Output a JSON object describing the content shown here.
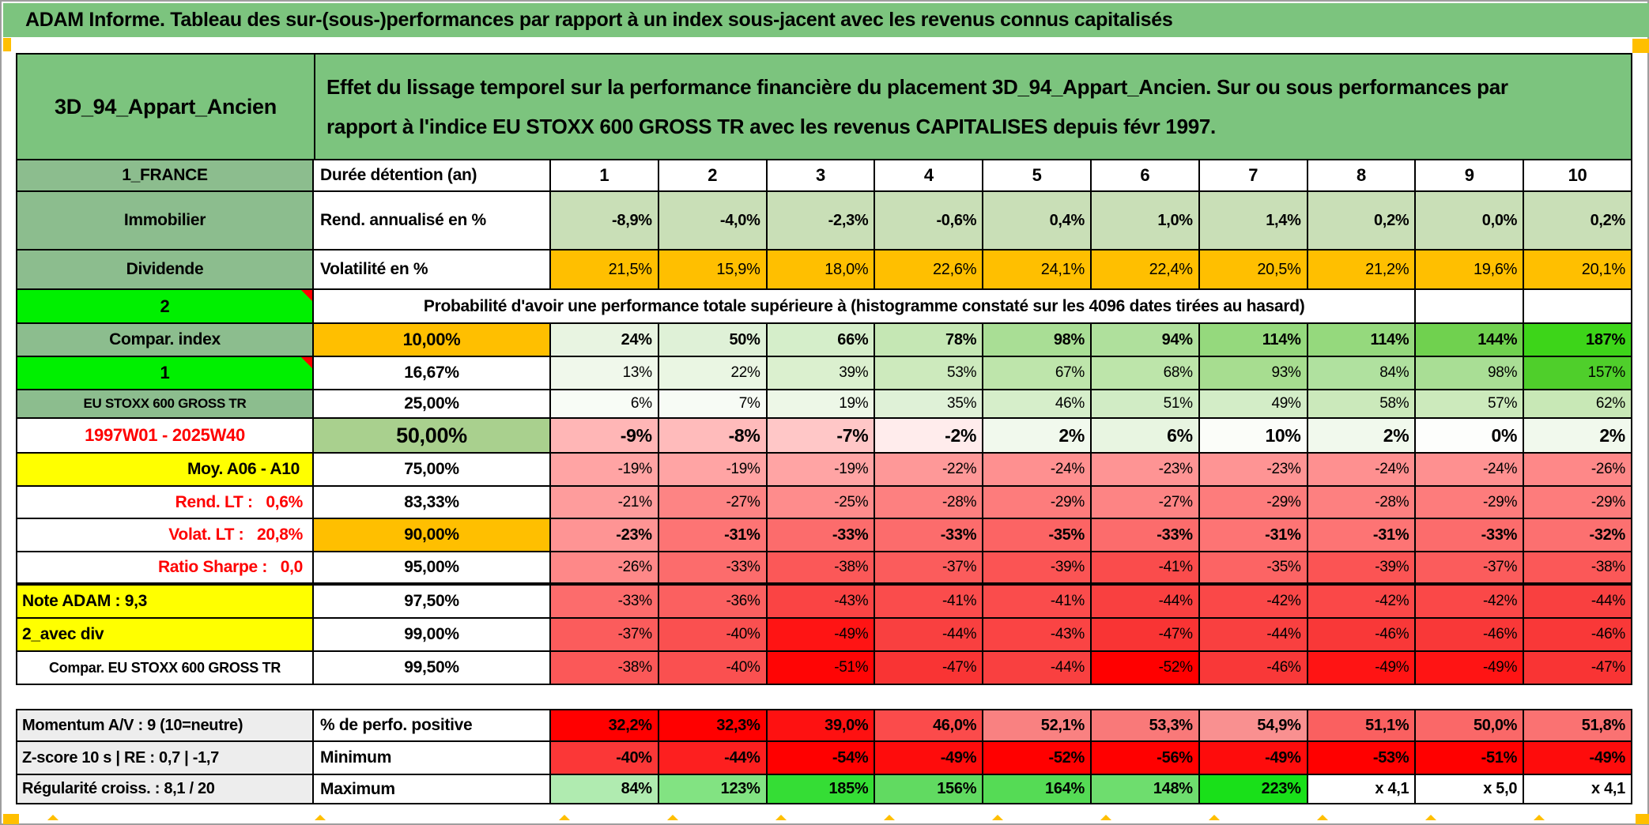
{
  "window": {
    "title": "ADAM Informe. Tableau des sur-(sous-)performances par rapport à un index sous-jacent avec les revenus connus capitalisés"
  },
  "header": {
    "asset_name": "3D_94_Appart_Ancien",
    "description": "Effet du lissage temporel sur la performance financière du placement 3D_94_Appart_Ancien. Sur ou sous performances par rapport à l'indice EU STOXX 600 GROSS TR avec les revenus CAPITALISES depuis févr 1997."
  },
  "colors": {
    "accent_green": "#7cc47e",
    "label_green": "#8cbd8e",
    "bright_green": "#00f000",
    "orange": "#ffbf00",
    "yellow": "#ffff00",
    "red_text": "#fe0000",
    "gray_label": "#ededed",
    "mid_green_50": "#a9d08e"
  },
  "table": {
    "rows": [
      {
        "id": "duration",
        "left": {
          "t": "1_FRANCE",
          "bg": "#8cbd8e"
        },
        "mid": {
          "t": "Durée détention (an)"
        },
        "cells": [
          [
            "1",
            "#ffffff"
          ],
          [
            "2",
            "#ffffff"
          ],
          [
            "3",
            "#ffffff"
          ],
          [
            "4",
            "#ffffff"
          ],
          [
            "5",
            "#ffffff"
          ],
          [
            "6",
            "#ffffff"
          ],
          [
            "7",
            "#ffffff"
          ],
          [
            "8",
            "#ffffff"
          ],
          [
            "9",
            "#ffffff"
          ],
          [
            "10",
            "#ffffff"
          ]
        ]
      },
      {
        "id": "rend",
        "left": {
          "t": "Immobilier",
          "bg": "#8cbd8e"
        },
        "mid": {
          "t": "Rend. annualisé en %"
        },
        "cells": [
          [
            "-8,9%",
            "#c9dfb7"
          ],
          [
            "-4,0%",
            "#c9dfb7"
          ],
          [
            "-2,3%",
            "#c9dfb7"
          ],
          [
            "-0,6%",
            "#c9dfb7"
          ],
          [
            "0,4%",
            "#c9dfb7"
          ],
          [
            "1,0%",
            "#c9dfb7"
          ],
          [
            "1,4%",
            "#c9dfb7"
          ],
          [
            "0,2%",
            "#c9dfb7"
          ],
          [
            "0,0%",
            "#c9dfb7"
          ],
          [
            "0,2%",
            "#c9dfb7"
          ]
        ]
      },
      {
        "id": "volat",
        "left": {
          "t": "Dividende",
          "bg": "#8cbd8e"
        },
        "mid": {
          "t": "Volatilité en %"
        },
        "cells": [
          [
            "21,5%",
            "#ffbf00"
          ],
          [
            "15,9%",
            "#ffbf00"
          ],
          [
            "18,0%",
            "#ffbf00"
          ],
          [
            "22,6%",
            "#ffbf00"
          ],
          [
            "24,1%",
            "#ffbf00"
          ],
          [
            "22,4%",
            "#ffbf00"
          ],
          [
            "20,5%",
            "#ffbf00"
          ],
          [
            "21,2%",
            "#ffbf00"
          ],
          [
            "19,6%",
            "#ffbf00"
          ],
          [
            "20,1%",
            "#ffbf00"
          ]
        ]
      },
      {
        "id": "probability",
        "left": {
          "t": "2",
          "bg": "#00f000",
          "note": true
        },
        "merged": "Probabilité d'avoir une performance totale supérieure à (histogramme constaté sur les 4096 dates tirées au hasard)",
        "tails": [
          "",
          ""
        ]
      },
      {
        "id": "p10",
        "left": {
          "t": "Compar. index",
          "bg": "#8cbd8e"
        },
        "mid": {
          "t": "10,00%",
          "bg": "#ffbf00"
        },
        "cells": [
          [
            "24%",
            "#e8f4e1"
          ],
          [
            "50%",
            "#dff1d7"
          ],
          [
            "66%",
            "#d5eeca"
          ],
          [
            "78%",
            "#c5e7b4"
          ],
          [
            "98%",
            "#a9de95"
          ],
          [
            "94%",
            "#afe09c"
          ],
          [
            "114%",
            "#95d97d"
          ],
          [
            "114%",
            "#95d97d"
          ],
          [
            "144%",
            "#70d14f"
          ],
          [
            "187%",
            "#3dd519"
          ]
        ]
      },
      {
        "id": "p16",
        "left": {
          "t": "1",
          "bg": "#00f000",
          "note": true
        },
        "mid": {
          "t": "16,67%"
        },
        "cells": [
          [
            "13%",
            "#f0f8eb"
          ],
          [
            "22%",
            "#eaf6e3"
          ],
          [
            "39%",
            "#dbf0cf"
          ],
          [
            "53%",
            "#cdeabd"
          ],
          [
            "67%",
            "#bee5ab"
          ],
          [
            "68%",
            "#bde5aa"
          ],
          [
            "93%",
            "#a7dd90"
          ],
          [
            "84%",
            "#b0e19f"
          ],
          [
            "98%",
            "#a9de95"
          ],
          [
            "157%",
            "#4fcf2b"
          ]
        ]
      },
      {
        "id": "p25",
        "left": {
          "t": "EU STOXX 600 GROSS TR",
          "bg": "#8cbd8e"
        },
        "mid": {
          "t": "25,00%"
        },
        "cells": [
          [
            "6%",
            "#f8fcf6"
          ],
          [
            "7%",
            "#f7fbf5"
          ],
          [
            "19%",
            "#edf7e7"
          ],
          [
            "35%",
            "#dff1d7"
          ],
          [
            "46%",
            "#d6eeca"
          ],
          [
            "51%",
            "#d1ecc5"
          ],
          [
            "49%",
            "#d3edc7"
          ],
          [
            "58%",
            "#cbe9bb"
          ],
          [
            "57%",
            "#cceabc"
          ],
          [
            "62%",
            "#c8e8b6"
          ]
        ]
      },
      {
        "id": "p50",
        "left": {
          "t": "1997W01 - 2025W40",
          "bg": "#ffffff",
          "color": "#fe0000"
        },
        "mid": {
          "t": "50,00%",
          "bg": "#a9d08e"
        },
        "cells": [
          [
            "-9%",
            "#ffb6b6"
          ],
          [
            "-8%",
            "#ffbbbb"
          ],
          [
            "-7%",
            "#ffc7c7"
          ],
          [
            "-2%",
            "#ffecec"
          ],
          [
            "2%",
            "#f1f9ed"
          ],
          [
            "6%",
            "#e8f5e1"
          ],
          [
            "10%",
            "#fbfdf9"
          ],
          [
            "2%",
            "#f1f9ed"
          ],
          [
            "0%",
            "#fdfefc"
          ],
          [
            "2%",
            "#f1f9ed"
          ]
        ]
      },
      {
        "id": "p75",
        "left": {
          "t": "Moy. A06 - A10",
          "bg": "#ffff00"
        },
        "mid": {
          "t": "75,00%"
        },
        "cells": [
          [
            "-19%",
            "#ffa4a4"
          ],
          [
            "-19%",
            "#ffa4a4"
          ],
          [
            "-19%",
            "#ffa4a4"
          ],
          [
            "-22%",
            "#fe9898"
          ],
          [
            "-24%",
            "#fe9090"
          ],
          [
            "-23%",
            "#fe9494"
          ],
          [
            "-23%",
            "#fe9494"
          ],
          [
            "-24%",
            "#fe9090"
          ],
          [
            "-24%",
            "#fe9090"
          ],
          [
            "-26%",
            "#fe8888"
          ]
        ]
      },
      {
        "id": "p83",
        "left": {
          "t": "Rend. LT :   0,6%",
          "bg": "#ffffff",
          "color": "#fe0000"
        },
        "mid": {
          "t": "83,33%"
        },
        "cells": [
          [
            "-21%",
            "#fe9c9c"
          ],
          [
            "-27%",
            "#fd8484"
          ],
          [
            "-25%",
            "#fe8c8c"
          ],
          [
            "-28%",
            "#fd8080"
          ],
          [
            "-29%",
            "#fd7c7c"
          ],
          [
            "-27%",
            "#fd8484"
          ],
          [
            "-29%",
            "#fd7c7c"
          ],
          [
            "-28%",
            "#fd8080"
          ],
          [
            "-29%",
            "#fd7c7c"
          ],
          [
            "-29%",
            "#fd7c7c"
          ]
        ]
      },
      {
        "id": "p90",
        "left": {
          "t": "Volat. LT :   20,8%",
          "bg": "#ffffff",
          "color": "#fe0000"
        },
        "mid": {
          "t": "90,00%",
          "bg": "#ffbf00"
        },
        "cells": [
          [
            "-23%",
            "#fe9494"
          ],
          [
            "-31%",
            "#fd7474"
          ],
          [
            "-33%",
            "#fc6c6c"
          ],
          [
            "-33%",
            "#fc6c6c"
          ],
          [
            "-35%",
            "#fc6464"
          ],
          [
            "-33%",
            "#fc6c6c"
          ],
          [
            "-31%",
            "#fd7474"
          ],
          [
            "-31%",
            "#fd7474"
          ],
          [
            "-33%",
            "#fc6c6c"
          ],
          [
            "-32%",
            "#fc7070"
          ]
        ]
      },
      {
        "id": "p95",
        "left": {
          "t": "Ratio Sharpe :   0,0",
          "bg": "#ffffff",
          "color": "#fe0000"
        },
        "mid": {
          "t": "95,00%"
        },
        "cells": [
          [
            "-26%",
            "#fe8888"
          ],
          [
            "-33%",
            "#fc6c6c"
          ],
          [
            "-38%",
            "#fb5858"
          ],
          [
            "-37%",
            "#fb5c5c"
          ],
          [
            "-39%",
            "#fb5454"
          ],
          [
            "-41%",
            "#fa4c4c"
          ],
          [
            "-35%",
            "#fc6464"
          ],
          [
            "-39%",
            "#fb5454"
          ],
          [
            "-37%",
            "#fb5c5c"
          ],
          [
            "-38%",
            "#fb5858"
          ]
        ]
      },
      {
        "id": "p975",
        "left": {
          "t": "Note ADAM : 9,3",
          "bg": "#ffff00"
        },
        "mid": {
          "t": "97,50%"
        },
        "cells": [
          [
            "-33%",
            "#fc6c6c"
          ],
          [
            "-36%",
            "#fb6060"
          ],
          [
            "-43%",
            "#fa4444"
          ],
          [
            "-41%",
            "#fa4c4c"
          ],
          [
            "-41%",
            "#fa4c4c"
          ],
          [
            "-44%",
            "#f94040"
          ],
          [
            "-42%",
            "#fa4848"
          ],
          [
            "-42%",
            "#fa4848"
          ],
          [
            "-42%",
            "#fa4848"
          ],
          [
            "-44%",
            "#f94040"
          ]
        ]
      },
      {
        "id": "p99",
        "left": {
          "t": "2_avec div",
          "bg": "#ffff00"
        },
        "mid": {
          "t": "99,00%"
        },
        "cells": [
          [
            "-37%",
            "#fb5c5c"
          ],
          [
            "-40%",
            "#fa5050"
          ],
          [
            "-49%",
            "#ff1414"
          ],
          [
            "-44%",
            "#f94040"
          ],
          [
            "-43%",
            "#fa4444"
          ],
          [
            "-47%",
            "#f93434"
          ],
          [
            "-44%",
            "#f94040"
          ],
          [
            "-46%",
            "#f93838"
          ],
          [
            "-46%",
            "#f93838"
          ],
          [
            "-46%",
            "#f93838"
          ]
        ]
      },
      {
        "id": "p995",
        "left": {
          "t": "Compar. EU STOXX 600 GROSS TR",
          "bg": "#ffffff"
        },
        "mid": {
          "t": "99,50%"
        },
        "cells": [
          [
            "-38%",
            "#fb5858"
          ],
          [
            "-40%",
            "#fa5050"
          ],
          [
            "-51%",
            "#ff0505"
          ],
          [
            "-47%",
            "#f93434"
          ],
          [
            "-44%",
            "#f94040"
          ],
          [
            "-52%",
            "#ff0000"
          ],
          [
            "-46%",
            "#f93838"
          ],
          [
            "-49%",
            "#ff1414"
          ],
          [
            "-49%",
            "#ff1414"
          ],
          [
            "-47%",
            "#f93434"
          ]
        ]
      },
      {
        "id": "gap"
      },
      {
        "id": "perfpos",
        "left": {
          "t": "Momentum A/V : 9 (10=neutre)",
          "bg": "#ededed"
        },
        "mid": {
          "t": "% de perfo. positive"
        },
        "cells": [
          [
            "32,2%",
            "#ff0000"
          ],
          [
            "32,3%",
            "#ff0000"
          ],
          [
            "39,0%",
            "#fe1111"
          ],
          [
            "46,0%",
            "#fb4b4b"
          ],
          [
            "52,1%",
            "#f98181"
          ],
          [
            "53,3%",
            "#f97979"
          ],
          [
            "54,9%",
            "#f99090"
          ],
          [
            "51,1%",
            "#fa6060"
          ],
          [
            "50,0%",
            "#fa6868"
          ],
          [
            "51,8%",
            "#fa7272"
          ]
        ]
      },
      {
        "id": "min",
        "left": {
          "t": "Z-score 10 s | RE : 0,7 | -1,7",
          "bg": "#ededed"
        },
        "mid": {
          "t": "Minimum"
        },
        "cells": [
          [
            "-40%",
            "#fb3737"
          ],
          [
            "-44%",
            "#fd1f1f"
          ],
          [
            "-54%",
            "#ff0000"
          ],
          [
            "-49%",
            "#fe0c0c"
          ],
          [
            "-52%",
            "#ff0000"
          ],
          [
            "-56%",
            "#ff0000"
          ],
          [
            "-49%",
            "#fe0c0c"
          ],
          [
            "-53%",
            "#ff0000"
          ],
          [
            "-51%",
            "#ff0000"
          ],
          [
            "-49%",
            "#fe0c0c"
          ]
        ]
      },
      {
        "id": "max",
        "left": {
          "t": "Régularité croiss. : 8,1 / 20",
          "bg": "#ededed"
        },
        "mid": {
          "t": "Maximum"
        },
        "cells": [
          [
            "84%",
            "#b0ebb0"
          ],
          [
            "123%",
            "#82e382"
          ],
          [
            "185%",
            "#35dd35"
          ],
          [
            "156%",
            "#61da61"
          ],
          [
            "164%",
            "#55db55"
          ],
          [
            "148%",
            "#6edd6e"
          ],
          [
            "223%",
            "#19e019"
          ],
          [
            "x 4,1",
            "#ffffff"
          ],
          [
            "x 5,0",
            "#ffffff"
          ],
          [
            "x 4,1",
            "#ffffff"
          ]
        ]
      }
    ]
  }
}
